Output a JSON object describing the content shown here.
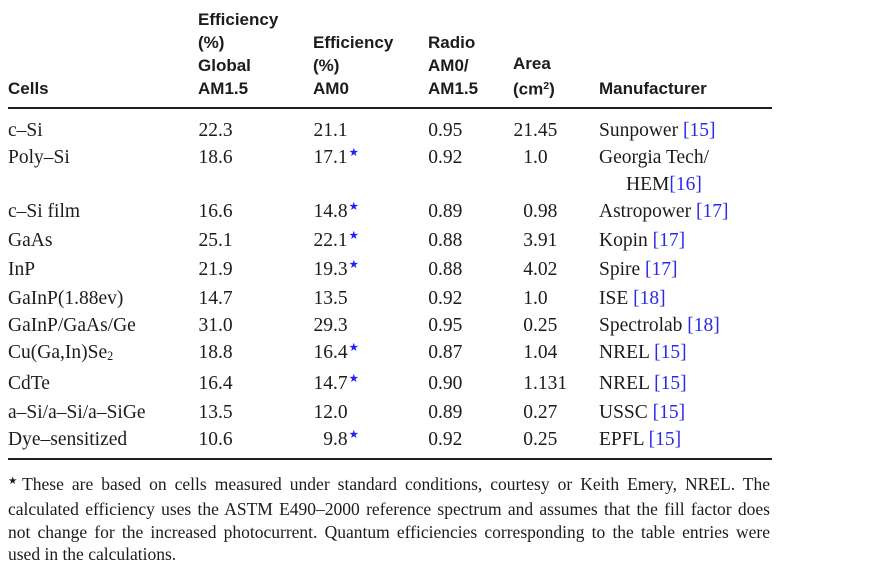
{
  "colors": {
    "text": "#1c1c1c",
    "link": "#2a2aee",
    "star": "#2222f2"
  },
  "table": {
    "columns": [
      {
        "name": "cells",
        "lines": [
          "Cells"
        ]
      },
      {
        "name": "efficiency-global-am15",
        "lines": [
          "Efficiency",
          "(%)",
          "Global",
          "AM1.5"
        ]
      },
      {
        "name": "efficiency-am0",
        "lines": [
          "Efficiency",
          "(%)",
          "AM0"
        ]
      },
      {
        "name": "ratio-am0-am15",
        "lines": [
          "Radio",
          "AM0/",
          "AM1.5"
        ]
      },
      {
        "name": "area-cm2",
        "lines": [
          "Area",
          [
            "(cm",
            {
              "sup": "2"
            },
            ")"
          ]
        ]
      },
      {
        "name": "manufacturer",
        "lines": [
          "Manufacturer"
        ]
      }
    ],
    "rows": [
      {
        "cell": "c–Si",
        "eff_am15": "22.3",
        "eff_am0": "21.1",
        "star": false,
        "ratio": "0.95",
        "area": "21.45",
        "manufacturer": [
          [
            {
              "t": "Sunpower ",
              "link": false
            },
            {
              "t": "[15]",
              "link": true
            }
          ]
        ]
      },
      {
        "cell": "Poly–Si",
        "eff_am15": "18.6",
        "eff_am0": "17.1",
        "star": true,
        "ratio": "0.92",
        "area": "1.0",
        "manufacturer": [
          [
            {
              "t": "Georgia Tech/",
              "link": false
            }
          ],
          [
            {
              "t": "HEM",
              "link": false
            },
            {
              "t": "[16]",
              "link": true
            }
          ]
        ]
      },
      {
        "cell": "c–Si film",
        "eff_am15": "16.6",
        "eff_am0": "14.8",
        "star": true,
        "ratio": "0.89",
        "area": "0.98",
        "manufacturer": [
          [
            {
              "t": "Astropower ",
              "link": false
            },
            {
              "t": "[17]",
              "link": true
            }
          ]
        ]
      },
      {
        "cell": "GaAs",
        "eff_am15": "25.1",
        "eff_am0": "22.1",
        "star": true,
        "ratio": "0.88",
        "area": "3.91",
        "manufacturer": [
          [
            {
              "t": "Kopin ",
              "link": false
            },
            {
              "t": "[17]",
              "link": true
            }
          ]
        ]
      },
      {
        "cell": "InP",
        "eff_am15": "21.9",
        "eff_am0": "19.3",
        "star": true,
        "ratio": "0.88",
        "area": "4.02",
        "manufacturer": [
          [
            {
              "t": "Spire ",
              "link": false
            },
            {
              "t": "[17]",
              "link": true
            }
          ]
        ]
      },
      {
        "cell": "GaInP(1.88ev)",
        "eff_am15": "14.7",
        "eff_am0": "13.5",
        "star": false,
        "ratio": "0.92",
        "area": "1.0",
        "manufacturer": [
          [
            {
              "t": "ISE ",
              "link": false
            },
            {
              "t": "[18]",
              "link": true
            }
          ]
        ]
      },
      {
        "cell": "GaInP/GaAs/Ge",
        "eff_am15": "31.0",
        "eff_am0": "29.3",
        "star": false,
        "ratio": "0.95",
        "area": "0.25",
        "manufacturer": [
          [
            {
              "t": "Spectrolab ",
              "link": false
            },
            {
              "t": "[18]",
              "link": true
            }
          ]
        ]
      },
      {
        "cell": [
          "Cu(Ga,In)Se",
          {
            "sub": "2"
          }
        ],
        "eff_am15": "18.8",
        "eff_am0": "16.4",
        "star": true,
        "ratio": "0.87",
        "area": "1.04",
        "manufacturer": [
          [
            {
              "t": "NREL ",
              "link": false
            },
            {
              "t": "[15]",
              "link": true
            }
          ]
        ]
      },
      {
        "cell": "CdTe",
        "eff_am15": "16.4",
        "eff_am0": "14.7",
        "star": true,
        "ratio": "0.90",
        "area": "1.131",
        "manufacturer": [
          [
            {
              "t": "NREL ",
              "link": false
            },
            {
              "t": "[15]",
              "link": true
            }
          ]
        ]
      },
      {
        "cell": "a–Si/a–Si/a–SiGe",
        "eff_am15": "13.5",
        "eff_am0": "12.0",
        "star": false,
        "ratio": "0.89",
        "area": "0.27",
        "manufacturer": [
          [
            {
              "t": "USSC ",
              "link": false
            },
            {
              "t": "[15]",
              "link": true
            }
          ]
        ]
      },
      {
        "cell": "Dye–sensitized",
        "eff_am15": "10.6",
        "eff_am0": "9.8",
        "star": true,
        "ratio": "0.92",
        "area": "0.25",
        "manufacturer": [
          [
            {
              "t": "EPFL ",
              "link": false
            },
            {
              "t": "[15]",
              "link": true
            }
          ]
        ]
      }
    ],
    "star_glyph": "★"
  },
  "footnote": {
    "marker": "★",
    "text": "These are based on cells measured under standard conditions, courtesy or Keith Emery, NREL. The calculated efficiency uses the ASTM E490–2000 reference spectrum and assumes that the fill factor does not change for the increased photocurrent. Quantum efficiencies corresponding to the table entries were used in the calculations."
  }
}
